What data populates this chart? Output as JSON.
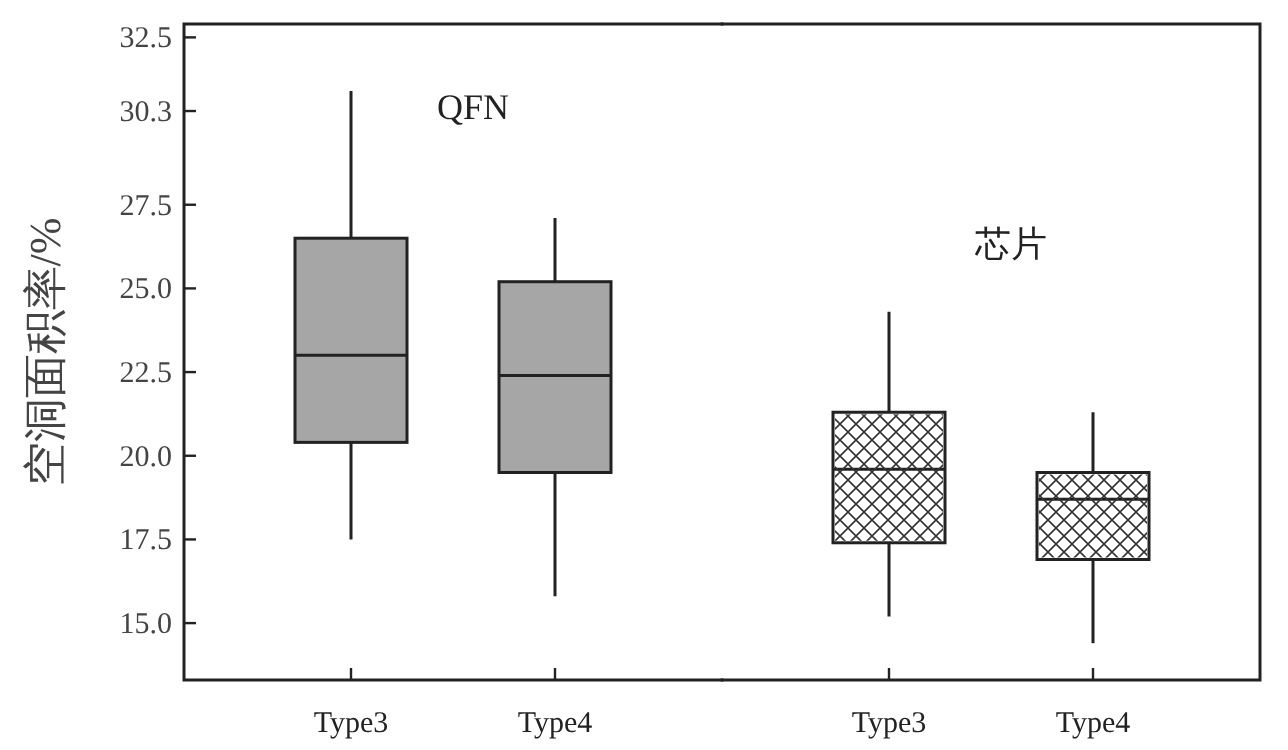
{
  "chart_data": [
    {
      "type": "box",
      "ylabel": "空洞面积率/%",
      "ylim": [
        13.3,
        32.9
      ],
      "yticks": [
        {
          "value": 15,
          "label": "15.0"
        },
        17.5,
        {
          "value": 20,
          "label": "20.0"
        },
        22.5,
        {
          "value": 25,
          "label": "25.0"
        },
        27.5,
        30.3,
        32.5
      ],
      "categories": [
        "Type3",
        "Type4"
      ],
      "series": [
        {
          "name": "QFN",
          "color": "#a6a6a6",
          "boxes": [
            {
              "low": 17.5,
              "q1": 20.4,
              "median": 23.0,
              "q3": 26.5,
              "high": 30.9
            },
            {
              "low": 15.8,
              "q1": 19.5,
              "median": 22.4,
              "q3": 25.2,
              "high": 27.1
            }
          ]
        }
      ]
    },
    {
      "type": "box",
      "ylim": [
        13.3,
        32.9
      ],
      "tick_labels": "x",
      "categories": [
        "Type3",
        "Type4"
      ],
      "series": [
        {
          "name": "芯片",
          "color": "#ffffff",
          "boxes": [
            {
              "low": 15.2,
              "q1": 17.4,
              "median": 19.6,
              "q3": 21.3,
              "high": 24.3
            },
            {
              "low": 14.4,
              "q1": 16.9,
              "median": 18.7,
              "q3": 19.5,
              "high": 21.3
            }
          ]
        }
      ]
    }
  ]
}
